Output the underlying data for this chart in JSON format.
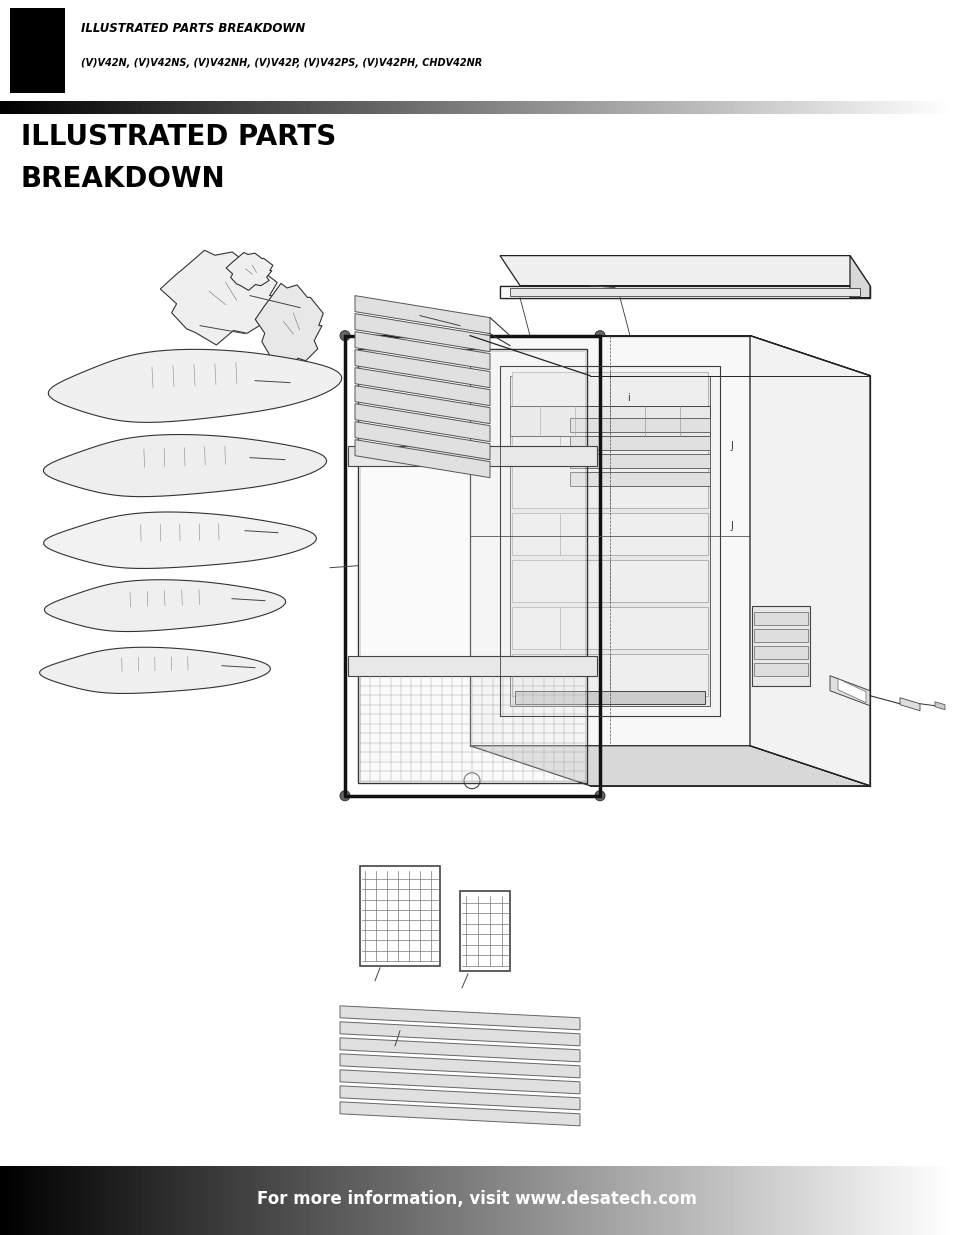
{
  "page_bg": "#ffffff",
  "header_text_line1": "ILLUSTRATED PARTS BREAKDOWN",
  "header_text_line2": "(V)V42N, (V)V42NS, (V)V42NH, (V)V42P, (V)V42PS, (V)V42PH, CHDV42NR",
  "section_title_line1": "ILLUSTRATED PARTS",
  "section_title_line2": "BREAKDOWN",
  "footer_text": "For more information, visit www.desatech.com"
}
